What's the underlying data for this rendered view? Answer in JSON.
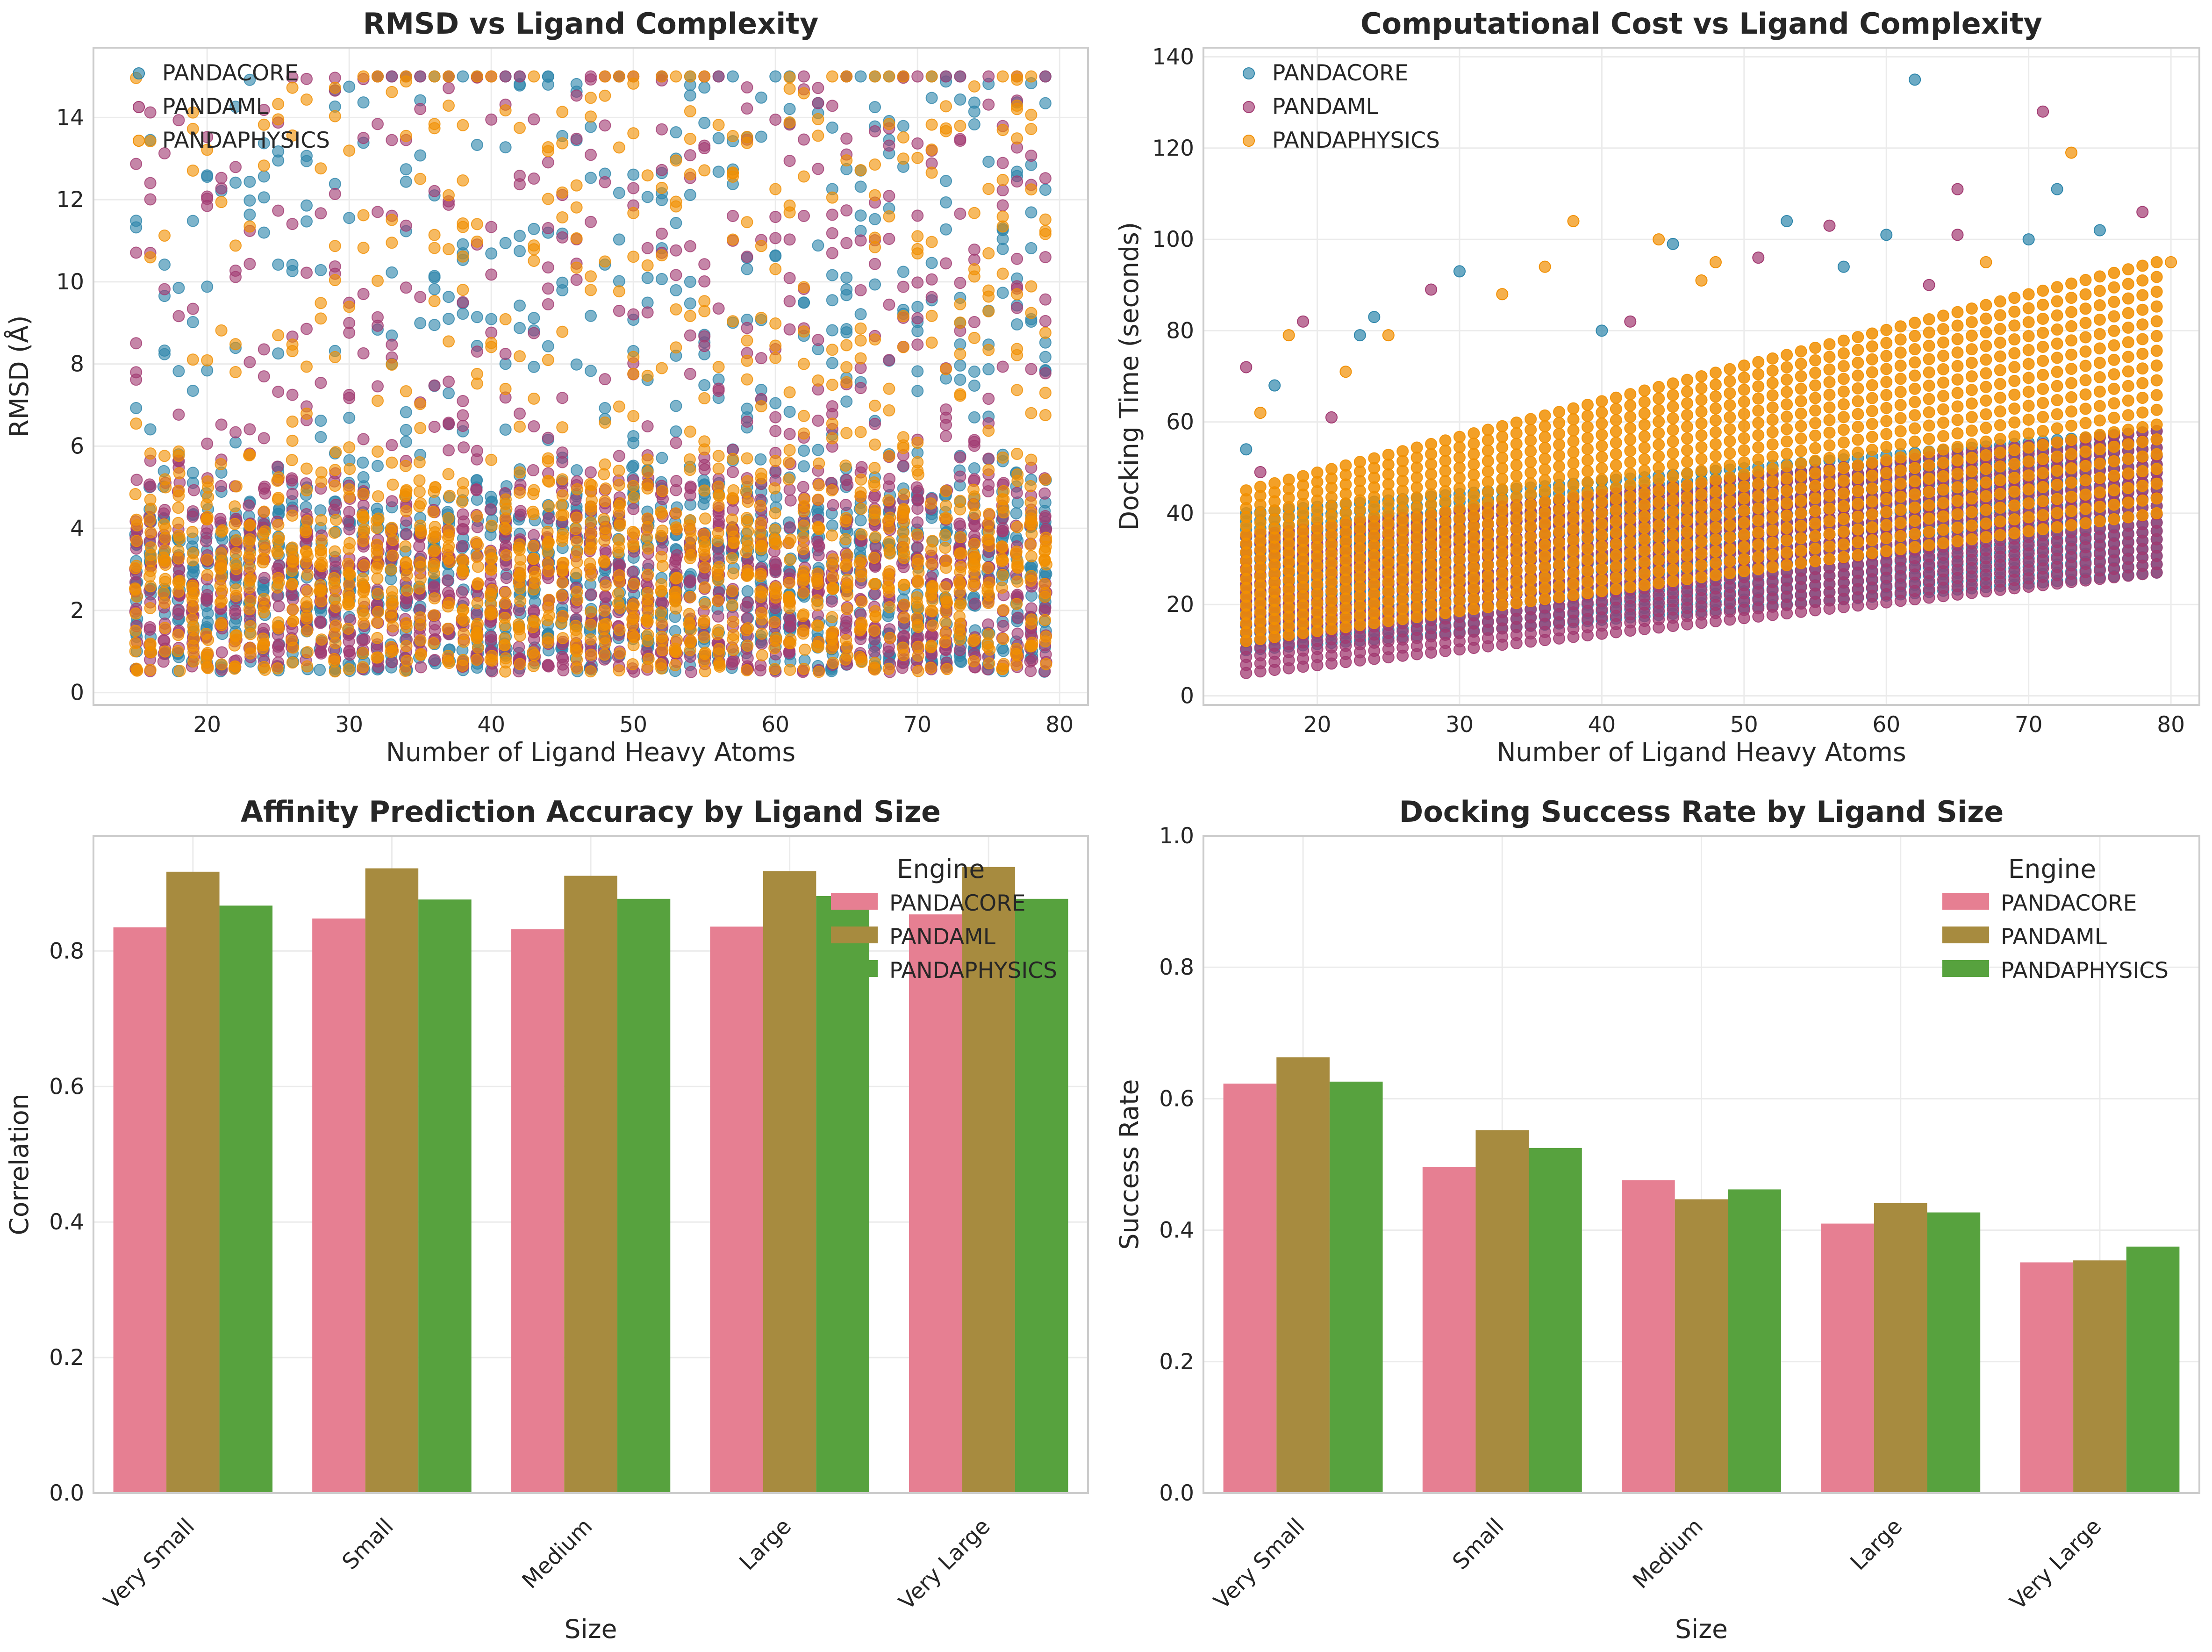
{
  "colors": {
    "scatter": {
      "PANDACORE": "#2E86AB",
      "PANDAML": "#A23B72",
      "PANDAPHYSICS": "#F18F01"
    },
    "bars": {
      "PANDACORE": "#e67f92",
      "PANDAML": "#a78b3f",
      "PANDAPHYSICS": "#57a23e"
    }
  },
  "chart_data": [
    {
      "type": "scatter",
      "title": "RMSD vs Ligand Complexity",
      "xlabel": "Number of Ligand Heavy Atoms",
      "ylabel": "RMSD (Å)",
      "xlim": [
        12,
        82
      ],
      "ylim": [
        -0.3,
        15.7
      ],
      "xticks": [
        20,
        30,
        40,
        50,
        60,
        70,
        80
      ],
      "yticks": [
        0,
        2,
        4,
        6,
        8,
        10,
        12,
        14
      ],
      "grid": true,
      "legend_position": "top-left",
      "series": [
        {
          "name": "PANDACORE"
        },
        {
          "name": "PANDAML"
        },
        {
          "name": "PANDAPHYSICS"
        }
      ],
      "x_range": [
        15,
        79
      ],
      "y_range": [
        0.5,
        15.0
      ],
      "dense_band": [
        0.5,
        6.0
      ]
    },
    {
      "type": "scatter",
      "title": "Computational Cost vs Ligand Complexity",
      "xlabel": "Number of Ligand Heavy Atoms",
      "ylabel": "Docking Time (seconds)",
      "xlim": [
        12,
        82
      ],
      "ylim": [
        -2,
        142
      ],
      "xticks": [
        20,
        30,
        40,
        50,
        60,
        70,
        80
      ],
      "yticks": [
        0,
        20,
        40,
        60,
        80,
        100,
        120,
        140
      ],
      "grid": true,
      "legend_position": "top-left",
      "series": [
        {
          "name": "PANDACORE",
          "band_at_x15": [
            10,
            40
          ],
          "band_at_x79": [
            27,
            58
          ]
        },
        {
          "name": "PANDAML",
          "band_at_x15": [
            5,
            35
          ],
          "band_at_x79": [
            27,
            58
          ]
        },
        {
          "name": "PANDAPHYSICS",
          "band_at_x15": [
            12,
            45
          ],
          "band_at_x79": [
            40,
            95
          ]
        }
      ],
      "outliers": [
        [
          62,
          135
        ],
        [
          71,
          128
        ],
        [
          73,
          119
        ],
        [
          72,
          111
        ],
        [
          65,
          111
        ],
        [
          38,
          104
        ],
        [
          53,
          104
        ],
        [
          56,
          103
        ],
        [
          44,
          100
        ],
        [
          45,
          99
        ],
        [
          51,
          96
        ],
        [
          36,
          94
        ],
        [
          60,
          101
        ],
        [
          65,
          101
        ],
        [
          48,
          95
        ],
        [
          70,
          100
        ],
        [
          78,
          106
        ],
        [
          80,
          95
        ],
        [
          24,
          83
        ],
        [
          19,
          82
        ],
        [
          18,
          79
        ],
        [
          23,
          79
        ],
        [
          15,
          72
        ],
        [
          25,
          79
        ],
        [
          30,
          93
        ],
        [
          28,
          89
        ],
        [
          22,
          71
        ],
        [
          17,
          68
        ],
        [
          21,
          61
        ],
        [
          16,
          62
        ],
        [
          15,
          54
        ],
        [
          16,
          49
        ],
        [
          33,
          88
        ],
        [
          40,
          80
        ],
        [
          42,
          82
        ],
        [
          47,
          91
        ],
        [
          57,
          94
        ],
        [
          63,
          90
        ],
        [
          67,
          95
        ],
        [
          75,
          102
        ]
      ]
    },
    {
      "type": "bar",
      "title": "Affinity Prediction Accuracy by Ligand Size",
      "xlabel": "Size",
      "ylabel": "Correlation",
      "categories": [
        "Very Small",
        "Small",
        "Medium",
        "Large",
        "Very Large"
      ],
      "ylim": [
        0,
        0.97
      ],
      "yticks": [
        0.0,
        0.2,
        0.4,
        0.6,
        0.8
      ],
      "ytick_labels": [
        "0.0",
        "0.2",
        "0.4",
        "0.6",
        "0.8"
      ],
      "legend_title": "Engine",
      "legend_position": "top-right",
      "grid": true,
      "series": [
        {
          "name": "PANDACORE",
          "values": [
            0.835,
            0.848,
            0.832,
            0.836,
            0.854
          ]
        },
        {
          "name": "PANDAML",
          "values": [
            0.917,
            0.922,
            0.911,
            0.918,
            0.924
          ]
        },
        {
          "name": "PANDAPHYSICS",
          "values": [
            0.867,
            0.876,
            0.877,
            0.881,
            0.877
          ]
        }
      ]
    },
    {
      "type": "bar",
      "title": "Docking Success Rate by Ligand Size",
      "xlabel": "Size",
      "ylabel": "Success Rate",
      "categories": [
        "Very Small",
        "Small",
        "Medium",
        "Large",
        "Very Large"
      ],
      "ylim": [
        0,
        1.0
      ],
      "yticks": [
        0.0,
        0.2,
        0.4,
        0.6,
        0.8,
        1.0
      ],
      "ytick_labels": [
        "0.0",
        "0.2",
        "0.4",
        "0.6",
        "0.8",
        "1.0"
      ],
      "legend_title": "Engine",
      "legend_position": "top-right",
      "grid": true,
      "series": [
        {
          "name": "PANDACORE",
          "values": [
            0.623,
            0.496,
            0.476,
            0.41,
            0.351
          ]
        },
        {
          "name": "PANDAML",
          "values": [
            0.663,
            0.552,
            0.447,
            0.441,
            0.354
          ]
        },
        {
          "name": "PANDAPHYSICS",
          "values": [
            0.626,
            0.525,
            0.462,
            0.427,
            0.375
          ]
        }
      ]
    }
  ]
}
